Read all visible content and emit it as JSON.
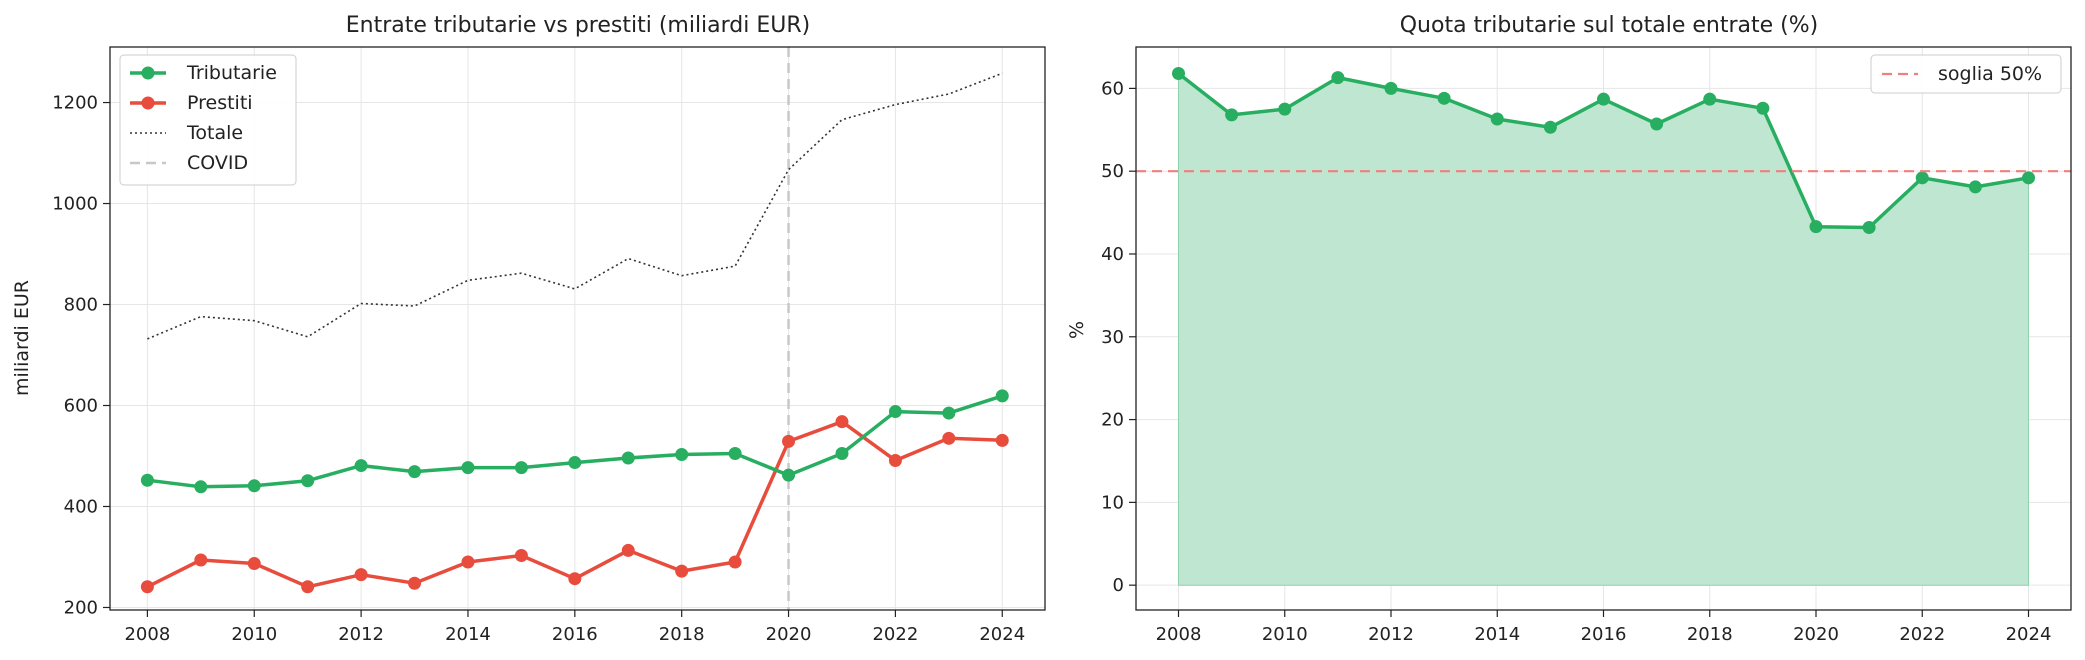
{
  "chart_data": [
    {
      "type": "line",
      "title": "Entrate tributarie vs prestiti (miliardi EUR)",
      "xlabel": "",
      "ylabel": "miliardi EUR",
      "x": [
        2008,
        2009,
        2010,
        2011,
        2012,
        2013,
        2014,
        2015,
        2016,
        2017,
        2018,
        2019,
        2020,
        2021,
        2022,
        2023,
        2024
      ],
      "xlim": [
        2007.3,
        2024.8
      ],
      "ylim": [
        195,
        1310
      ],
      "xticks": [
        2008,
        2010,
        2012,
        2014,
        2016,
        2018,
        2020,
        2022,
        2024
      ],
      "yticks": [
        200,
        400,
        600,
        800,
        1000,
        1200
      ],
      "grid": true,
      "legend_position": "top-left",
      "series": [
        {
          "name": "Tributarie",
          "color": "#27ae60",
          "style": "solid-markers",
          "values": [
            452,
            439,
            441,
            451,
            481,
            469,
            477,
            477,
            487,
            496,
            503,
            505,
            462,
            505,
            588,
            585,
            619
          ]
        },
        {
          "name": "Prestiti",
          "color": "#e74c3c",
          "style": "solid-markers",
          "values": [
            241,
            294,
            287,
            241,
            265,
            248,
            290,
            303,
            257,
            313,
            272,
            290,
            529,
            568,
            491,
            535,
            531
          ]
        },
        {
          "name": "Totale",
          "color": "#333333",
          "style": "dotted",
          "values": [
            732,
            776,
            768,
            736,
            802,
            797,
            848,
            862,
            831,
            891,
            857,
            876,
            1067,
            1166,
            1196,
            1217,
            1258
          ]
        }
      ],
      "vlines": [
        {
          "name": "COVID",
          "x": 2020,
          "color": "#c8c8c8",
          "style": "dashed"
        }
      ]
    },
    {
      "type": "area",
      "title": "Quota tributarie sul totale entrate (%)",
      "xlabel": "",
      "ylabel": "%",
      "x": [
        2008,
        2009,
        2010,
        2011,
        2012,
        2013,
        2014,
        2015,
        2016,
        2017,
        2018,
        2019,
        2020,
        2021,
        2022,
        2023,
        2024
      ],
      "xlim": [
        2007.2,
        2024.8
      ],
      "ylim": [
        -3,
        65
      ],
      "xticks": [
        2008,
        2010,
        2012,
        2014,
        2016,
        2018,
        2020,
        2022,
        2024
      ],
      "yticks": [
        0,
        10,
        20,
        30,
        40,
        50,
        60
      ],
      "grid": true,
      "legend_position": "top-right",
      "series": [
        {
          "name": "",
          "color": "#27ae60",
          "fill": "#bfe6d0",
          "values": [
            61.8,
            56.8,
            57.5,
            61.3,
            60.0,
            58.8,
            56.3,
            55.3,
            58.7,
            55.7,
            58.7,
            57.6,
            43.3,
            43.2,
            49.2,
            48.1,
            49.2
          ]
        }
      ],
      "hlines": [
        {
          "name": "soglia 50%",
          "y": 50,
          "color": "#f08080",
          "style": "dashed"
        }
      ]
    }
  ]
}
